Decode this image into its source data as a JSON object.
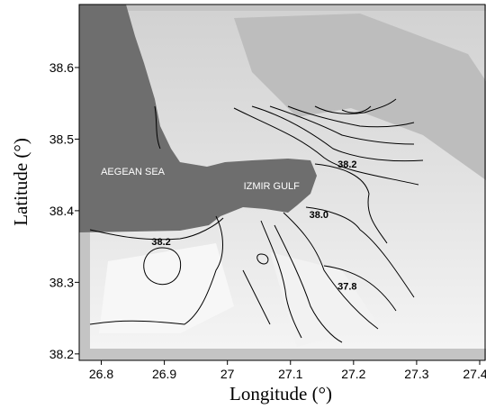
{
  "axes": {
    "xlabel": "Longitude (°)",
    "ylabel": "Latitude (°)",
    "xlim": [
      26.765,
      27.41
    ],
    "ylim": [
      38.191,
      38.688
    ],
    "xticks": [
      26.8,
      26.9,
      27,
      27.1,
      27.2,
      27.3,
      27.4
    ],
    "yticks": [
      38.2,
      38.3,
      38.4,
      38.5,
      38.6
    ]
  },
  "labels": [
    {
      "text": "AEGEAN SEA",
      "lon": 26.85,
      "lat": 38.45
    },
    {
      "text": "IZMIR GULF",
      "lon": 27.07,
      "lat": 38.43
    }
  ],
  "contour_labels": [
    {
      "text": "38.2",
      "lon": 27.19,
      "lat": 38.46
    },
    {
      "text": "38.2",
      "lon": 26.895,
      "lat": 38.352
    },
    {
      "text": "38.0",
      "lon": 27.145,
      "lat": 38.39
    },
    {
      "text": "37.8",
      "lon": 27.19,
      "lat": 38.29
    }
  ]
}
